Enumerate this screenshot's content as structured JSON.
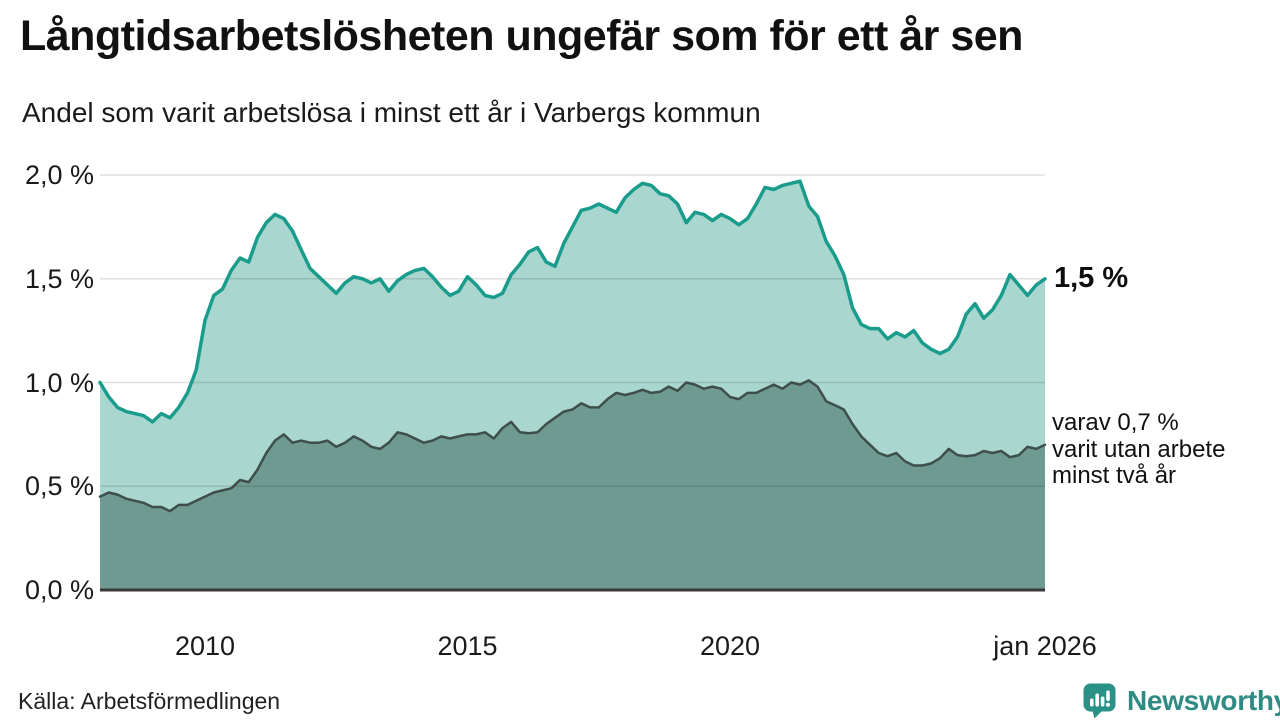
{
  "header": {
    "title": "Långtidsarbetslösheten ungefär som för ett år sen",
    "subtitle": "Andel som varit arbetslösa i minst ett år i Varbergs kommun"
  },
  "annotations": {
    "latest_total": "1,5 %",
    "series2_line1": "varav 0,7 %",
    "series2_line2": "varit utan arbete",
    "series2_line3": "minst två år"
  },
  "source": {
    "label": "Källa: Arbetsförmedlingen"
  },
  "logo": {
    "text": "Newsworthy",
    "icon": "bar-chart-speech-bubble-icon",
    "color": "#2E8B83"
  },
  "colors": {
    "series1_line": "#1A9C8C",
    "series1_fill": "#A9D6CE",
    "series2_line": "#3E4F4B",
    "series2_fill": "#6F9A92",
    "axis_line": "#383838",
    "gridline": "rgba(0,0,0,0.12)",
    "text": "#1a1a1a"
  },
  "chart_data": {
    "type": "area",
    "title": "Långtidsarbetslösheten ungefär som för ett år sen",
    "subtitle": "Andel som varit arbetslösa i minst ett år i Varbergs kommun",
    "unit": "%",
    "x_start_year": 2008.0,
    "x_end_year": 2026.0,
    "x_step_months": 2,
    "ylim": [
      0,
      2.07
    ],
    "grid": true,
    "yticks": [
      {
        "value": 0.0,
        "label": "0,0 %"
      },
      {
        "value": 0.5,
        "label": "0,5 %"
      },
      {
        "value": 1.0,
        "label": "1,0 %"
      },
      {
        "value": 1.5,
        "label": "1,5 %"
      },
      {
        "value": 2.0,
        "label": "2,0 %"
      }
    ],
    "xticks": [
      {
        "year": 2010,
        "label": "2010"
      },
      {
        "year": 2015,
        "label": "2015"
      },
      {
        "year": 2020,
        "label": "2020"
      },
      {
        "year": 2026,
        "label": "jan 2026"
      }
    ],
    "series": [
      {
        "name": "Andel som varit arbetslösa i minst ett år",
        "latest_value": 1.5,
        "latest_label": "1,5 %",
        "line_color": "#1A9C8C",
        "fill_color": "#A9D6CE",
        "values": [
          1.0,
          0.93,
          0.88,
          0.86,
          0.85,
          0.84,
          0.81,
          0.85,
          0.83,
          0.88,
          0.95,
          1.06,
          1.3,
          1.42,
          1.45,
          1.54,
          1.6,
          1.58,
          1.7,
          1.77,
          1.81,
          1.79,
          1.73,
          1.64,
          1.55,
          1.51,
          1.47,
          1.43,
          1.48,
          1.51,
          1.5,
          1.48,
          1.5,
          1.44,
          1.49,
          1.52,
          1.54,
          1.55,
          1.51,
          1.46,
          1.42,
          1.44,
          1.51,
          1.47,
          1.42,
          1.41,
          1.43,
          1.52,
          1.57,
          1.63,
          1.65,
          1.58,
          1.56,
          1.67,
          1.75,
          1.83,
          1.84,
          1.86,
          1.84,
          1.82,
          1.89,
          1.93,
          1.96,
          1.95,
          1.91,
          1.9,
          1.86,
          1.77,
          1.82,
          1.81,
          1.78,
          1.81,
          1.79,
          1.76,
          1.79,
          1.86,
          1.94,
          1.93,
          1.95,
          1.96,
          1.97,
          1.85,
          1.8,
          1.68,
          1.61,
          1.52,
          1.36,
          1.28,
          1.26,
          1.26,
          1.21,
          1.24,
          1.22,
          1.25,
          1.19,
          1.16,
          1.14,
          1.16,
          1.22,
          1.33,
          1.38,
          1.31,
          1.35,
          1.42,
          1.52,
          1.47,
          1.42,
          1.47,
          1.5
        ]
      },
      {
        "name": "varav varit utan arbete minst två år",
        "latest_value": 0.7,
        "latest_label": "0,7 %",
        "line_color": "#3E4F4B",
        "fill_color": "#6F9A92",
        "values": [
          0.45,
          0.47,
          0.46,
          0.44,
          0.43,
          0.42,
          0.4,
          0.4,
          0.38,
          0.41,
          0.41,
          0.43,
          0.45,
          0.47,
          0.48,
          0.49,
          0.53,
          0.52,
          0.58,
          0.66,
          0.72,
          0.75,
          0.71,
          0.72,
          0.71,
          0.71,
          0.72,
          0.69,
          0.71,
          0.74,
          0.72,
          0.69,
          0.68,
          0.71,
          0.76,
          0.75,
          0.73,
          0.71,
          0.72,
          0.74,
          0.73,
          0.74,
          0.75,
          0.75,
          0.76,
          0.73,
          0.78,
          0.81,
          0.76,
          0.755,
          0.76,
          0.8,
          0.83,
          0.86,
          0.87,
          0.9,
          0.88,
          0.88,
          0.92,
          0.95,
          0.94,
          0.95,
          0.965,
          0.95,
          0.955,
          0.98,
          0.96,
          1.0,
          0.99,
          0.97,
          0.98,
          0.97,
          0.93,
          0.92,
          0.95,
          0.95,
          0.97,
          0.99,
          0.97,
          1.0,
          0.99,
          1.01,
          0.98,
          0.91,
          0.89,
          0.87,
          0.8,
          0.74,
          0.7,
          0.66,
          0.645,
          0.66,
          0.62,
          0.6,
          0.6,
          0.61,
          0.635,
          0.68,
          0.65,
          0.645,
          0.65,
          0.67,
          0.66,
          0.67,
          0.64,
          0.65,
          0.69,
          0.68,
          0.7
        ]
      }
    ]
  }
}
